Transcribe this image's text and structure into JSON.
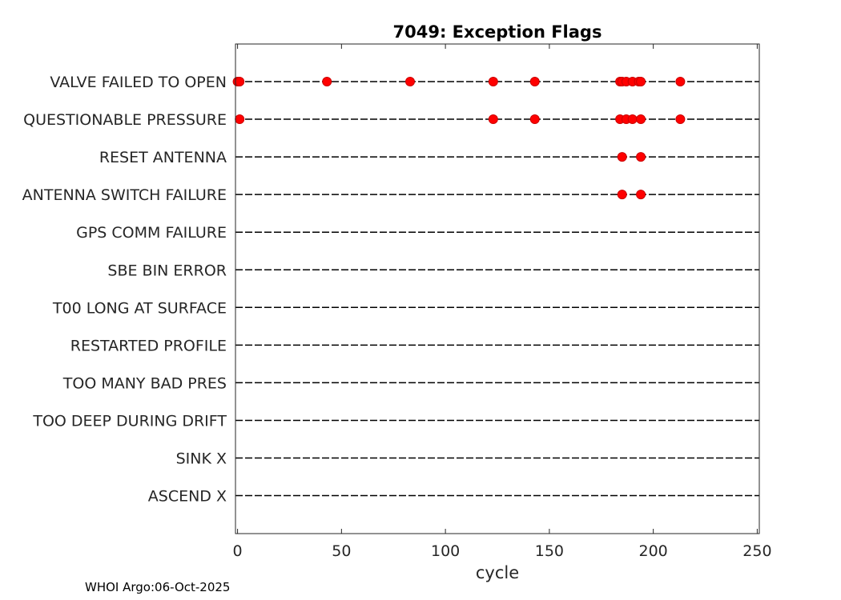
{
  "chart_data": {
    "type": "scatter",
    "title": "7049: Exception Flags",
    "xlabel": "cycle",
    "ylabel": "",
    "xlim": [
      -1,
      251
    ],
    "xticks": [
      0,
      50,
      100,
      150,
      200,
      250
    ],
    "grid": false,
    "categories": [
      "VALVE FAILED TO OPEN",
      "QUESTIONABLE PRESSURE",
      "RESET ANTENNA",
      "ANTENNA SWITCH FAILURE",
      "GPS COMM FAILURE",
      "SBE BIN ERROR",
      "T00 LONG AT SURFACE",
      "RESTARTED PROFILE",
      "TOO MANY BAD PRES",
      "TOO DEEP DURING DRIFT",
      "SINK X",
      "ASCEND X"
    ],
    "series": [
      {
        "name": "VALVE FAILED TO OPEN",
        "x": [
          0,
          1,
          43,
          83,
          123,
          143,
          184,
          185,
          187,
          190,
          193,
          194,
          213
        ]
      },
      {
        "name": "QUESTIONABLE PRESSURE",
        "x": [
          1,
          123,
          143,
          184,
          187,
          190,
          194,
          213
        ]
      },
      {
        "name": "RESET ANTENNA",
        "x": [
          185,
          194
        ]
      },
      {
        "name": "ANTENNA SWITCH FAILURE",
        "x": [
          185,
          194
        ]
      },
      {
        "name": "GPS COMM FAILURE",
        "x": []
      },
      {
        "name": "SBE BIN ERROR",
        "x": []
      },
      {
        "name": "T00 LONG AT SURFACE",
        "x": []
      },
      {
        "name": "RESTARTED PROFILE",
        "x": []
      },
      {
        "name": "TOO MANY BAD PRES",
        "x": []
      },
      {
        "name": "TOO DEEP DURING DRIFT",
        "x": []
      },
      {
        "name": "SINK X",
        "x": []
      },
      {
        "name": "ASCEND X",
        "x": []
      }
    ],
    "colors": {
      "marker": "#ff0000",
      "marker_edge": "#cc0000",
      "line": "#000000",
      "axis": "#262626"
    }
  },
  "footer": {
    "text": "WHOI Argo:06-Oct-2025"
  }
}
